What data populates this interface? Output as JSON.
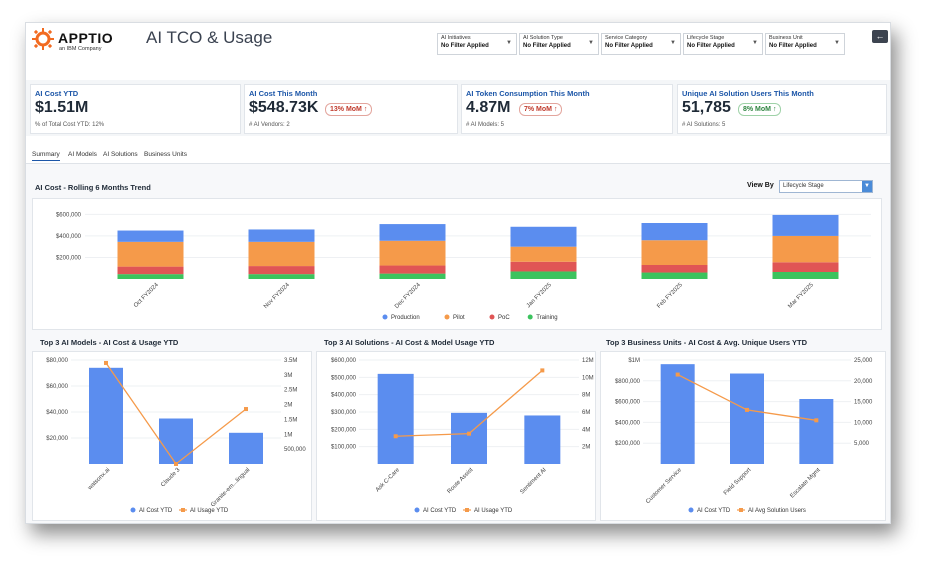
{
  "header": {
    "logo_text": "APPTIO",
    "logo_sub": "an IBM Company",
    "title": "AI TCO & Usage",
    "back_icon": "arrow-left-icon"
  },
  "filters": [
    {
      "label": "AI Initiatives",
      "value": "No Filter Applied"
    },
    {
      "label": "AI Solution Type",
      "value": "No Filter Applied"
    },
    {
      "label": "Service Category",
      "value": "No Filter Applied"
    },
    {
      "label": "Lifecycle Stage",
      "value": "No Filter Applied"
    },
    {
      "label": "Business Unit",
      "value": "No Filter Applied"
    }
  ],
  "kpis": [
    {
      "title": "AI Cost YTD",
      "value": "$1.51M",
      "badge": "",
      "sub": "% of Total Cost YTD: 12%"
    },
    {
      "title": "AI Cost This Month",
      "value": "$548.73K",
      "badge": "13% MoM ↑",
      "badge_color": "#c0392b",
      "sub": "# AI Vendors: 2"
    },
    {
      "title": "AI Token Consumption This Month",
      "value": "4.87M",
      "badge": "7% MoM ↑",
      "badge_color": "#c0392b",
      "sub": "# AI Models: 5"
    },
    {
      "title": "Unique AI Solution Users This Month",
      "value": "51,785",
      "badge": "8% MoM ↑",
      "badge_color": "#2e8540",
      "sub": "# AI Solutions: 5"
    }
  ],
  "tabs": [
    "Summary",
    "AI Models",
    "AI Solutions",
    "Business Units"
  ],
  "trend": {
    "title": "AI Cost - Rolling 6 Months Trend",
    "view_by_label": "View By",
    "view_by_value": "Lifecycle Stage"
  },
  "colors": {
    "production": "#5b8def",
    "pilot": "#f59a4a",
    "poc": "#e05555",
    "training": "#3cc35e",
    "bar": "#5b8def",
    "line": "#f59a4a"
  },
  "chart_data": [
    {
      "type": "bar",
      "stacked": true,
      "title": "AI Cost - Rolling 6 Months Trend",
      "categories": [
        "Oct FY2024",
        "Nov FY2024",
        "Dec FY2024",
        "Jan FY2025",
        "Feb FY2025",
        "Mar FY2025"
      ],
      "series": [
        {
          "name": "Training",
          "values": [
            45000,
            45000,
            50000,
            70000,
            60000,
            65000
          ]
        },
        {
          "name": "PoC",
          "values": [
            70000,
            75000,
            75000,
            90000,
            70000,
            90000
          ]
        },
        {
          "name": "Pilot",
          "values": [
            230000,
            225000,
            230000,
            140000,
            230000,
            245000
          ]
        },
        {
          "name": "Production",
          "values": [
            105000,
            115000,
            155000,
            185000,
            160000,
            195000
          ]
        }
      ],
      "yticks": [
        "$200,000",
        "$400,000",
        "$600,000"
      ],
      "ylim": [
        0,
        650000
      ],
      "legend": "bottom"
    },
    {
      "type": "bar",
      "title": "Top 3 AI Models - AI Cost & Usage YTD",
      "categories": [
        "watsonx.ai",
        "Claude 3",
        "Granite-em...lingual"
      ],
      "series": [
        {
          "name": "AI Cost YTD",
          "values": [
            74000,
            35000,
            24000
          ]
        },
        {
          "name": "AI Usage YTD",
          "values": [
            3400000,
            0,
            1850000
          ]
        }
      ],
      "yticks_left": [
        "$20,000",
        "$40,000",
        "$60,000",
        "$80,000"
      ],
      "yticks_right": [
        "500,000",
        "1M",
        "1.5M",
        "2M",
        "2.5M",
        "3M",
        "3.5M"
      ],
      "ylim_left": [
        0,
        80000
      ],
      "ylim_right": [
        0,
        3500000
      ],
      "legend": "bottom"
    },
    {
      "type": "bar",
      "title": "Top 3 AI Solutions - AI Cost & Model Usage YTD",
      "categories": [
        "Ask C-Care",
        "Route Assist",
        "Sentiment AI"
      ],
      "series": [
        {
          "name": "AI Cost YTD",
          "values": [
            520000,
            295000,
            280000
          ]
        },
        {
          "name": "AI Usage YTD",
          "values": [
            3200000,
            3500000,
            10800000
          ]
        }
      ],
      "yticks_left": [
        "$100,000",
        "$200,000",
        "$300,000",
        "$400,000",
        "$500,000",
        "$600,000"
      ],
      "yticks_right": [
        "2M",
        "4M",
        "6M",
        "8M",
        "10M",
        "12M"
      ],
      "ylim_left": [
        0,
        600000
      ],
      "ylim_right": [
        0,
        12000000
      ],
      "legend": "bottom"
    },
    {
      "type": "bar",
      "title": "Top 3 Business Units - AI Cost & Avg. Unique Users YTD",
      "categories": [
        "Customer Service",
        "Field Support",
        "Escalate Mgmt"
      ],
      "series": [
        {
          "name": "AI Cost YTD",
          "values": [
            960000,
            870000,
            625000
          ]
        },
        {
          "name": "AI Avg Solution Users",
          "values": [
            21500,
            13000,
            10500
          ]
        }
      ],
      "yticks_left": [
        "$200,000",
        "$400,000",
        "$600,000",
        "$800,000",
        "$1M"
      ],
      "yticks_right": [
        "5,000",
        "10,000",
        "15,000",
        "20,000",
        "25,000"
      ],
      "ylim_left": [
        0,
        1000000
      ],
      "ylim_right": [
        0,
        25000
      ],
      "legend": "bottom"
    }
  ]
}
